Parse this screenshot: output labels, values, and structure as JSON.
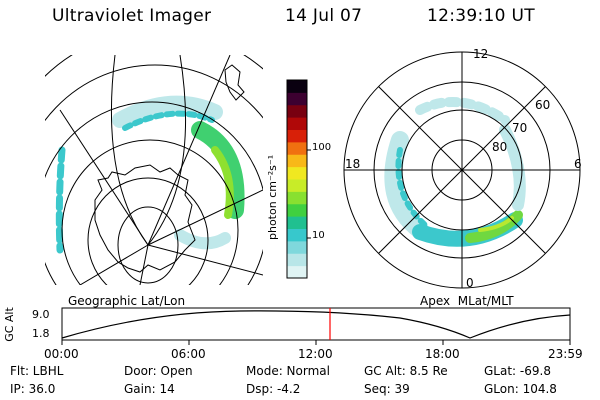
{
  "header": {
    "instrument": "Ultraviolet Imager",
    "date": "14 Jul 07",
    "time": "12:39:10 UT"
  },
  "colorbar": {
    "title": "photon cm⁻²s⁻¹",
    "ticks": [
      "100",
      "10"
    ],
    "colors": [
      "#e0f4f4",
      "#b8e6e8",
      "#7fd8dc",
      "#37c8cc",
      "#20c090",
      "#40d040",
      "#88e030",
      "#c8ec28",
      "#f0e820",
      "#f8b818",
      "#f07010",
      "#d82008",
      "#b00808",
      "#780010",
      "#3c0030",
      "#0a0010"
    ]
  },
  "left_map": {
    "label": "Geographic Lat/Lon"
  },
  "right_map": {
    "label": "Apex  MLat/MLT",
    "mlt_labels": [
      "12",
      "18",
      "6",
      "0"
    ],
    "lat_labels": [
      "60",
      "70",
      "80"
    ]
  },
  "altitude_panel": {
    "ylabel": "GC Alt",
    "yticks": [
      "9.0",
      "1.8"
    ],
    "xticks": [
      "00:00",
      "06:00",
      "12:00",
      "18:00",
      "23:59"
    ],
    "current_time_marker": "12:39"
  },
  "info": {
    "row1": [
      {
        "label": "Flt:",
        "value": "LBHL"
      },
      {
        "label": "Door:",
        "value": "Open"
      },
      {
        "label": "Mode:",
        "value": "Normal"
      },
      {
        "label": "GC Alt:",
        "value": "8.5 Re"
      },
      {
        "label": "GLat:",
        "value": "-69.8"
      }
    ],
    "row2": [
      {
        "label": "IP:",
        "value": "36.0"
      },
      {
        "label": "Gain:",
        "value": "14"
      },
      {
        "label": "Dsp:",
        "value": "-4.2"
      },
      {
        "label": "Seq:",
        "value": "39"
      },
      {
        "label": "GLon:",
        "value": "104.8"
      }
    ]
  }
}
